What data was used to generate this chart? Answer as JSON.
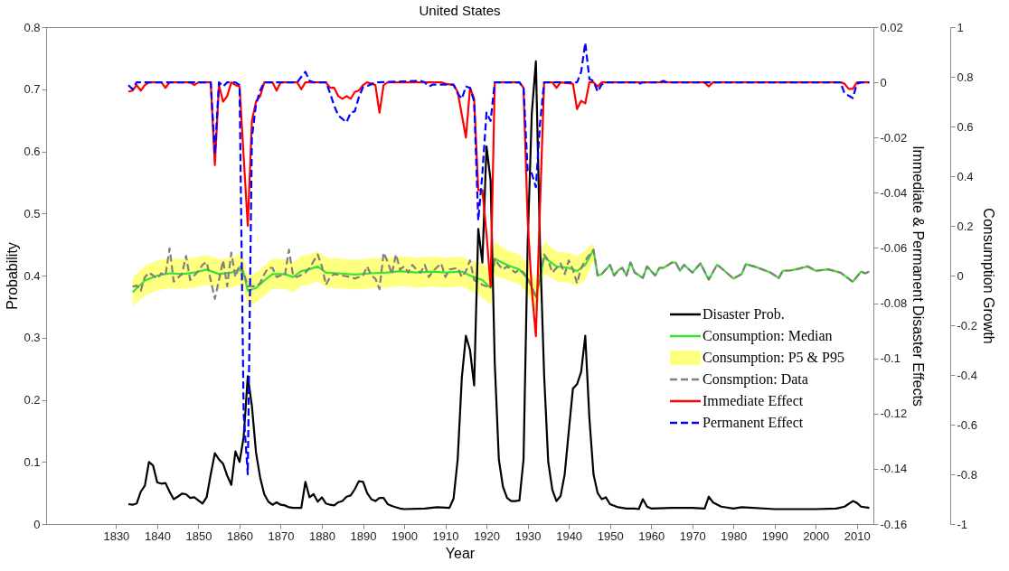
{
  "chart_data": {
    "type": "line",
    "title": "United States",
    "xlabel": "Year",
    "ylabel": "Probability",
    "y2label": "Immediate & Permanent Disaster Effects",
    "y3label": "Consumption Growth",
    "xlim": [
      1813,
      2014
    ],
    "xticks": [
      1830,
      1840,
      1850,
      1860,
      1870,
      1880,
      1890,
      1900,
      1910,
      1920,
      1930,
      1940,
      1950,
      1960,
      1970,
      1980,
      1990,
      2000,
      2010
    ],
    "ylim": [
      0,
      0.8
    ],
    "yticks": [
      0,
      0.1,
      0.2,
      0.3,
      0.4,
      0.5,
      0.6,
      0.7,
      0.8
    ],
    "y2lim": [
      -0.16,
      0.02
    ],
    "y2ticks": [
      -0.16,
      -0.14,
      -0.12,
      -0.1,
      -0.08,
      -0.06,
      -0.04,
      -0.02,
      0,
      0.02
    ],
    "y3lim": [
      -1,
      1
    ],
    "y3ticks": [
      -1,
      -0.8,
      -0.6,
      -0.4,
      -0.2,
      0,
      0.2,
      0.4,
      0.6,
      0.8,
      1
    ],
    "grid": false,
    "legend": "bottom right",
    "series": [
      {
        "name": "Disaster Prob.",
        "color": "#000000",
        "x": [
          1833,
          1834,
          1835,
          1836,
          1837,
          1838,
          1839,
          1840,
          1841,
          1842,
          1843,
          1844,
          1845,
          1846,
          1847,
          1848,
          1849,
          1850,
          1851,
          1852,
          1853,
          1854,
          1855,
          1856,
          1857,
          1858,
          1859,
          1860,
          1861,
          1862,
          1863,
          1864,
          1865,
          1866,
          1867,
          1868,
          1869,
          1870,
          1871,
          1872,
          1873,
          1874,
          1875,
          1876,
          1877,
          1878,
          1879,
          1880,
          1881,
          1882,
          1883,
          1884,
          1885,
          1886,
          1887,
          1888,
          1889,
          1890,
          1891,
          1892,
          1893,
          1894,
          1895,
          1896,
          1897,
          1898,
          1899,
          1900,
          1905,
          1908,
          1911,
          1912,
          1913,
          1914,
          1915,
          1916,
          1917,
          1918,
          1919,
          1920,
          1921,
          1922,
          1923,
          1924,
          1925,
          1926,
          1927,
          1928,
          1929,
          1930,
          1931,
          1932,
          1933,
          1934,
          1935,
          1936,
          1937,
          1938,
          1939,
          1940,
          1941,
          1942,
          1943,
          1944,
          1945,
          1946,
          1947,
          1948,
          1949,
          1950,
          1952,
          1954,
          1956,
          1957,
          1958,
          1959,
          1960,
          1965,
          1970,
          1973,
          1974,
          1975,
          1977,
          1980,
          1982,
          1990,
          2000,
          2005,
          2007,
          2009,
          2010,
          2011,
          2013
        ],
        "values": [
          0.032,
          0.031,
          0.033,
          0.052,
          0.062,
          0.1,
          0.094,
          0.067,
          0.065,
          0.066,
          0.052,
          0.04,
          0.044,
          0.049,
          0.048,
          0.042,
          0.043,
          0.038,
          0.033,
          0.043,
          0.08,
          0.114,
          0.104,
          0.097,
          0.078,
          0.063,
          0.117,
          0.1,
          0.14,
          0.238,
          0.19,
          0.115,
          0.075,
          0.048,
          0.036,
          0.031,
          0.035,
          0.031,
          0.03,
          0.027,
          0.026,
          0.026,
          0.026,
          0.068,
          0.043,
          0.048,
          0.036,
          0.043,
          0.033,
          0.031,
          0.03,
          0.035,
          0.037,
          0.044,
          0.046,
          0.056,
          0.069,
          0.068,
          0.05,
          0.04,
          0.037,
          0.042,
          0.042,
          0.032,
          0.029,
          0.027,
          0.025,
          0.024,
          0.025,
          0.027,
          0.026,
          0.041,
          0.104,
          0.235,
          0.303,
          0.28,
          0.223,
          0.475,
          0.421,
          0.608,
          0.553,
          0.26,
          0.104,
          0.06,
          0.042,
          0.037,
          0.037,
          0.038,
          0.104,
          0.45,
          0.66,
          0.745,
          0.45,
          0.24,
          0.1,
          0.055,
          0.037,
          0.045,
          0.08,
          0.15,
          0.218,
          0.225,
          0.245,
          0.303,
          0.17,
          0.08,
          0.05,
          0.04,
          0.043,
          0.032,
          0.027,
          0.025,
          0.025,
          0.024,
          0.04,
          0.028,
          0.025,
          0.026,
          0.026,
          0.025,
          0.044,
          0.035,
          0.028,
          0.025,
          0.027,
          0.024,
          0.024,
          0.025,
          0.028,
          0.037,
          0.034,
          0.028,
          0.026
        ]
      },
      {
        "name": "Consumption: Median",
        "axis": "y3",
        "color": "#33e633",
        "x": [
          1834,
          1837,
          1840,
          1843,
          1846,
          1849,
          1852,
          1855,
          1858,
          1860,
          1861,
          1862,
          1864,
          1866,
          1868,
          1871,
          1873,
          1875,
          1877,
          1879,
          1881,
          1884,
          1888,
          1892,
          1896,
          1899,
          1903,
          1907,
          1910,
          1914,
          1916,
          1919,
          1921,
          1922,
          1925,
          1928,
          1930,
          1932,
          1934,
          1937,
          1940,
          1942,
          1944,
          1946,
          1947,
          1948,
          1950,
          1951,
          1952,
          1953,
          1954,
          1955,
          1956,
          1958,
          1959,
          1961,
          1962,
          1963,
          1965,
          1966,
          1967,
          1968,
          1970,
          1972,
          1974,
          1976,
          1977,
          1980,
          1982,
          1983,
          1985,
          1987,
          1989,
          1991,
          1992,
          1994,
          1996,
          1998,
          2000,
          2003,
          2006,
          2009,
          2011,
          2012,
          2013
        ],
        "values": [
          -0.067,
          -0.02,
          0,
          0.009,
          0.006,
          0.012,
          0.024,
          0.006,
          0.012,
          0.024,
          0.01,
          -0.061,
          -0.05,
          -0.02,
          0.006,
          0.006,
          -0.006,
          0.018,
          0.025,
          0.037,
          0.012,
          0.009,
          0.004,
          0.009,
          0.012,
          0.018,
          0.012,
          0.016,
          0.012,
          0.016,
          0,
          -0.018,
          -0.049,
          0.067,
          0.043,
          0.024,
          -0.012,
          -0.085,
          0.073,
          0.037,
          0.031,
          0.018,
          0.043,
          0.104,
          0,
          0.006,
          0.043,
          0,
          0.021,
          0.031,
          0,
          0.053,
          0.012,
          -0.009,
          0.037,
          0,
          0.031,
          0.031,
          0.052,
          0.052,
          0.019,
          0.043,
          0.012,
          0.049,
          -0.016,
          0.043,
          0.031,
          -0.012,
          0.006,
          0.046,
          0.037,
          0.025,
          0.012,
          -0.01,
          0.019,
          0.021,
          0.028,
          0.037,
          0.019,
          0.025,
          0.012,
          -0.025,
          0.016,
          0.009,
          0.016
        ],
        "lower": [
          -0.122,
          -0.08,
          -0.06,
          -0.051,
          -0.054,
          -0.048,
          -0.036,
          -0.054,
          -0.048,
          -0.036,
          -0.05,
          -0.121,
          -0.11,
          -0.08,
          -0.054,
          -0.054,
          -0.066,
          -0.042,
          -0.035,
          -0.023,
          -0.048,
          -0.051,
          -0.056,
          -0.051,
          -0.048,
          -0.042,
          -0.048,
          -0.044,
          -0.048,
          -0.044,
          -0.06,
          -0.088,
          -0.119,
          -0.003,
          -0.017,
          -0.036,
          -0.072,
          -0.15,
          0.008,
          -0.023,
          -0.029,
          -0.042,
          -0.017,
          0.06,
          -0.005,
          0.001,
          0.038,
          -0.005,
          0.016,
          0.026,
          -0.005,
          0.048,
          0.007,
          -0.014,
          0.032,
          -0.005,
          0.026,
          0.026,
          0.047,
          0.047,
          0.014,
          0.038,
          0.007,
          0.044,
          -0.021,
          0.038,
          0.026,
          -0.017,
          0.001,
          0.041,
          0.032,
          0.02,
          0.007,
          -0.015,
          0.014,
          0.016,
          0.023,
          0.032,
          0.014,
          0.02,
          0.007,
          -0.03,
          0.011,
          0.004,
          0.011
        ],
        "upper": [
          -0.012,
          0.04,
          0.06,
          0.069,
          0.066,
          0.072,
          0.084,
          0.066,
          0.072,
          0.084,
          0.07,
          -0.001,
          0.01,
          0.04,
          0.066,
          0.066,
          0.054,
          0.078,
          0.085,
          0.097,
          0.072,
          0.069,
          0.064,
          0.069,
          0.072,
          0.078,
          0.072,
          0.076,
          0.072,
          0.076,
          0.06,
          0.052,
          0.021,
          0.137,
          0.103,
          0.084,
          0.048,
          -0.02,
          0.138,
          0.097,
          0.091,
          0.078,
          0.103,
          0.13,
          0.005,
          0.011,
          0.048,
          0.005,
          0.026,
          0.036,
          0.005,
          0.058,
          0.017,
          -0.004,
          0.042,
          0.005,
          0.036,
          0.036,
          0.057,
          0.057,
          0.024,
          0.048,
          0.017,
          0.054,
          -0.011,
          0.048,
          0.036,
          -0.007,
          0.011,
          0.051,
          0.042,
          0.03,
          0.017,
          -0.005,
          0.024,
          0.026,
          0.033,
          0.042,
          0.024,
          0.03,
          0.017,
          -0.02,
          0.021,
          0.014,
          0.021
        ]
      },
      {
        "name": "Consumption: P5 & P95",
        "type": "area",
        "axis": "y3",
        "color": "#ffff80"
      },
      {
        "name": "Consmption: Data",
        "axis": "y3",
        "color": "#808080",
        "line_style": "dashed",
        "x": [
          1834,
          1835,
          1836,
          1837,
          1838,
          1840,
          1841,
          1842,
          1843,
          1844,
          1846,
          1847,
          1848,
          1849,
          1850,
          1851,
          1852,
          1854,
          1855,
          1856,
          1857,
          1858,
          1859,
          1860,
          1861,
          1862,
          1864,
          1865,
          1866,
          1867,
          1868,
          1869,
          1870,
          1871,
          1872,
          1873,
          1874,
          1876,
          1877,
          1879,
          1880,
          1881,
          1882,
          1883,
          1885,
          1887,
          1888,
          1890,
          1891,
          1892,
          1893,
          1894,
          1895,
          1896,
          1897,
          1898,
          1899,
          1900,
          1901,
          1902,
          1903,
          1904,
          1905,
          1906,
          1907,
          1909,
          1910,
          1911,
          1913,
          1914,
          1915,
          1916,
          1917,
          1919,
          1921,
          1922,
          1923,
          1924,
          1925,
          1927,
          1928,
          1929,
          1930,
          1931,
          1932,
          1933,
          1934,
          1935,
          1936,
          1938,
          1939,
          1940,
          1941,
          1942,
          1943,
          1944,
          1946,
          1947,
          1948,
          1950,
          1951,
          1952,
          1953,
          1954,
          1955,
          1956,
          1958,
          1959,
          1961,
          1962,
          1963,
          1965,
          1966,
          1967,
          1968,
          1970,
          1972,
          1974,
          1976,
          1977,
          1980,
          1982,
          1983,
          1985,
          1987,
          1989,
          1991,
          1992,
          1994,
          1996,
          1998,
          2000,
          2003,
          2006,
          2009,
          2011,
          2012,
          2013
        ],
        "values": [
          -0.045,
          -0.04,
          -0.061,
          -0.006,
          0.012,
          -0.012,
          0.009,
          0,
          0.11,
          -0.024,
          0.006,
          0.079,
          -0.018,
          0,
          0.018,
          0.043,
          0.055,
          -0.094,
          -0.018,
          0.061,
          -0.043,
          0.092,
          -0.006,
          0.043,
          0.012,
          -0.043,
          -0.043,
          -0.031,
          0.006,
          0.031,
          0.031,
          -0.006,
          0,
          0,
          0.104,
          0,
          -0.006,
          0.012,
          0.031,
          0.085,
          0.037,
          -0.037,
          -0.006,
          0.006,
          0,
          -0.006,
          -0.012,
          0,
          0.037,
          0,
          -0.012,
          -0.055,
          0.092,
          0.055,
          0.006,
          0.085,
          0.024,
          0.037,
          0.012,
          0.043,
          0.024,
          0.012,
          0.043,
          -0.006,
          0.018,
          0.049,
          -0.006,
          0.024,
          0.031,
          -0.006,
          0.018,
          0.061,
          -0.018,
          -0.037,
          -0.049,
          0.067,
          0.043,
          0.024,
          0.037,
          0.012,
          0.024,
          0.012,
          -0.012,
          -0.043,
          -0.092,
          -0.006,
          0.085,
          0.061,
          0.012,
          0.049,
          0.006,
          0.061,
          0.024,
          -0.031,
          0.031,
          0.061,
          0.104,
          0,
          0.006,
          0.043,
          0,
          0.021,
          0.031,
          0,
          0.053,
          0.012,
          -0.009,
          0.037,
          0,
          0.031,
          0.031,
          0.052,
          0.052,
          0.019,
          0.043,
          0.012,
          0.049,
          -0.016,
          0.043,
          0.031,
          -0.012,
          0.006,
          0.046,
          0.037,
          0.025,
          0.012,
          -0.01,
          0.019,
          0.021,
          0.028,
          0.037,
          0.019,
          0.025,
          0.012,
          -0.025,
          0.016,
          0.009,
          0.016
        ]
      },
      {
        "name": "Immediate Effect",
        "axis": "y2",
        "color": "#ff0000",
        "x": [
          1833,
          1834,
          1835,
          1836,
          1837,
          1838,
          1841,
          1842,
          1843,
          1848,
          1849,
          1850,
          1853,
          1854,
          1855,
          1856,
          1857,
          1858,
          1859,
          1860,
          1861,
          1862,
          1863,
          1864,
          1865,
          1866,
          1868,
          1869,
          1870,
          1874,
          1875,
          1876,
          1881,
          1882,
          1883,
          1884,
          1885,
          1886,
          1887,
          1888,
          1889,
          1890,
          1891,
          1893,
          1894,
          1895,
          1896,
          1909,
          1910,
          1912,
          1913,
          1915,
          1916,
          1917,
          1918,
          1919,
          1920,
          1921,
          1922,
          1928,
          1929,
          1930,
          1931,
          1932,
          1933,
          1934,
          1936,
          1937,
          1938,
          1941,
          1942,
          1943,
          1944,
          1945,
          1946,
          1947,
          1948,
          1973,
          1974,
          1975,
          2006,
          2007,
          2008,
          2009,
          2010,
          2013
        ],
        "values": [
          -0.0034,
          -0.003,
          -0.001,
          -0.003,
          -0.001,
          0,
          0,
          -0.002,
          0,
          0,
          -0.001,
          0,
          0,
          -0.03,
          -0.001,
          -0.007,
          -0.005,
          0,
          -0.001,
          -0.0015,
          -0.027,
          -0.052,
          -0.014,
          -0.007,
          -0.005,
          0,
          0,
          -0.003,
          0,
          0,
          -0.0025,
          0,
          0,
          -0.002,
          -0.002,
          -0.005,
          -0.006,
          -0.005,
          -0.006,
          -0.0035,
          -0.003,
          -0.001,
          0,
          -0.001,
          -0.011,
          -0.001,
          0,
          0,
          -0.0005,
          -0.001,
          -0.0035,
          -0.02,
          -0.002,
          -0.006,
          -0.039,
          -0.039,
          -0.055,
          -0.074,
          0,
          0,
          -0.002,
          -0.05,
          -0.075,
          -0.092,
          -0.045,
          0,
          0,
          -0.002,
          0,
          -0.0005,
          -0.0097,
          -0.0067,
          -0.0076,
          0,
          0,
          -0.0015,
          0,
          0,
          -0.0015,
          0,
          0,
          -0.0005,
          -0.0024,
          -0.0024,
          0,
          0
        ]
      },
      {
        "name": "Permanent Effect",
        "axis": "y2",
        "color": "#0000ff",
        "line_style": "dashed",
        "x": [
          1833,
          1834,
          1835,
          1853,
          1854,
          1855,
          1856,
          1857,
          1859,
          1860,
          1861,
          1862,
          1863,
          1864,
          1865,
          1866,
          1874,
          1875,
          1876,
          1877,
          1878,
          1881,
          1882,
          1883,
          1884,
          1886,
          1887,
          1888,
          1889,
          1890,
          1891,
          1893,
          1904,
          1905,
          1906,
          1907,
          1912,
          1913,
          1914,
          1915,
          1916,
          1917,
          1918,
          1919,
          1920,
          1921,
          1922,
          1928,
          1929,
          1930,
          1931,
          1932,
          1933,
          1934,
          1942,
          1943,
          1944,
          1945,
          1946,
          1947,
          1948,
          1949,
          1956,
          1957,
          1958,
          1962,
          1963,
          1964,
          2006,
          2007,
          2009,
          2010,
          2011,
          2013
        ],
        "values": [
          -0.001,
          -0.0025,
          0,
          0,
          -0.026,
          0,
          -0.0015,
          0,
          0,
          -0.001,
          -0.12,
          -0.142,
          -0.02,
          -0.008,
          -0.003,
          0,
          0,
          0.002,
          0.0038,
          0.0005,
          0,
          0,
          -0.004,
          -0.0085,
          -0.012,
          -0.0145,
          -0.011,
          -0.0105,
          -0.0053,
          -0.0018,
          -0.0014,
          0,
          0.0005,
          0,
          -0.0015,
          -0.0008,
          -0.0008,
          -0.004,
          -0.006,
          -0.0015,
          -0.002,
          -0.007,
          -0.05,
          -0.033,
          -0.011,
          -0.014,
          0,
          0,
          -0.002,
          -0.032,
          -0.033,
          -0.038,
          -0.015,
          0,
          0,
          0.0038,
          0.0143,
          0.0012,
          0.0005,
          -0.0034,
          -0.0008,
          0,
          0,
          -0.0005,
          0,
          0,
          0.0005,
          0,
          0,
          -0.004,
          -0.0057,
          -0.0005,
          0,
          0
        ]
      }
    ]
  }
}
